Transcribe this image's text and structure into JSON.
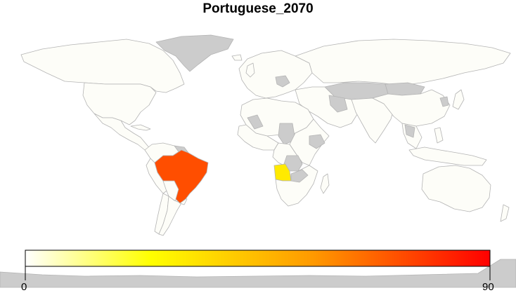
{
  "map": {
    "title": "Portuguese_2070",
    "type": "choropleth-world-map",
    "colors": {
      "background": "#ffffff",
      "no_data": "#cccccc",
      "zero_value": "#fdfdf8",
      "border": "#b4b4b4"
    },
    "highlighted_countries": [
      {
        "name": "Brazil",
        "color": "#ff4e00"
      },
      {
        "name": "Angola",
        "color": "#ffea00"
      }
    ]
  },
  "legend": {
    "min_label": "0",
    "max_label": "90",
    "range": [
      0,
      90
    ],
    "gradient_stops": [
      "#ffffff",
      "#ffff00",
      "#ff9900",
      "#ff0000"
    ]
  }
}
